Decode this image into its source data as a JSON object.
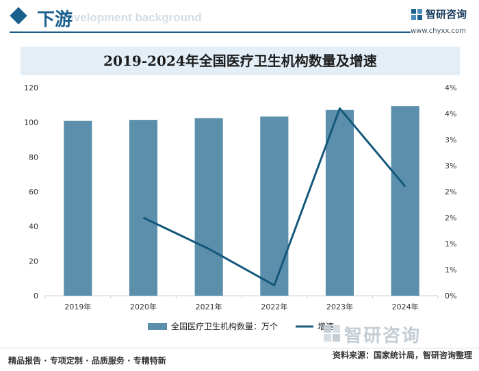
{
  "header": {
    "section_title": "下游",
    "section_subtitle": "Development background",
    "brand_name": "智研咨询",
    "brand_url": "www.chyxx.com"
  },
  "footer": {
    "tagline": "精品报告 · 专项定制 · 品质服务 · 专精特新",
    "source": "资料来源：国家统计局，智研咨询整理",
    "watermark_brand": "智研咨询"
  },
  "colors": {
    "bar": "#5b8fab",
    "line": "#14587c",
    "accent": "#1a5f8e",
    "title_bg": "#e3eef7"
  },
  "chart_data": {
    "type": "bar",
    "title": "2019-2024年全国医疗卫生机构数量及增速",
    "categories": [
      "2019年",
      "2020年",
      "2021年",
      "2022年",
      "2023年",
      "2024年"
    ],
    "series": [
      {
        "name": "全国医疗卫生机构数量：万个",
        "type": "bar",
        "axis": "left",
        "values": [
          100.8,
          101.4,
          102.4,
          103.3,
          107.1,
          109.3
        ]
      },
      {
        "name": "增速",
        "type": "line",
        "axis": "right",
        "values": [
          null,
          1.5,
          0.9,
          0.2,
          3.6,
          2.1
        ]
      }
    ],
    "left_axis": {
      "ylim": [
        0,
        120
      ],
      "ticks": [
        "0",
        "20",
        "40",
        "60",
        "80",
        "100",
        "120"
      ]
    },
    "right_axis": {
      "ylim": [
        0,
        4
      ],
      "ticks": [
        "0%",
        "1%",
        "1%",
        "2%",
        "2%",
        "3%",
        "3%",
        "4%",
        "4%"
      ]
    },
    "legend_position": "bottom"
  }
}
